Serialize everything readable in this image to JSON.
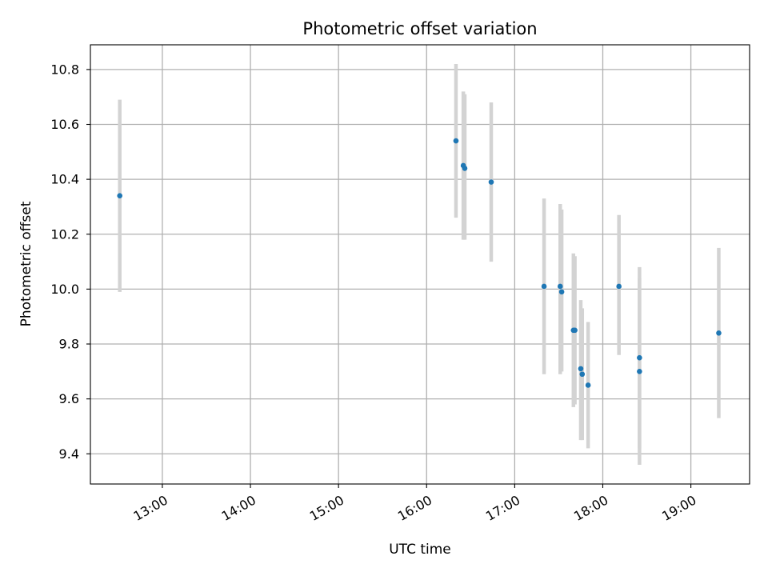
{
  "chart_data": {
    "type": "scatter",
    "title": "Photometric offset variation",
    "xlabel": "UTC time",
    "ylabel": "Photometric offset",
    "x_is_time": true,
    "xlim": [
      "12:11",
      "19:40"
    ],
    "ylim": [
      9.29,
      10.89
    ],
    "x_ticks": [
      "13:00",
      "14:00",
      "15:00",
      "16:00",
      "17:00",
      "18:00",
      "19:00"
    ],
    "y_ticks": [
      "9.4",
      "9.6",
      "9.8",
      "10.0",
      "10.2",
      "10.4",
      "10.6",
      "10.8"
    ],
    "grid": true,
    "x_tick_rotation_deg": 30,
    "series": [
      {
        "points": [
          {
            "x": "12:31",
            "y": 10.34,
            "y_low": 9.99,
            "y_high": 10.69
          },
          {
            "x": "16:20",
            "y": 10.54,
            "y_low": 10.26,
            "y_high": 10.82
          },
          {
            "x": "16:25",
            "y": 10.45,
            "y_low": 10.18,
            "y_high": 10.72
          },
          {
            "x": "16:26",
            "y": 10.44,
            "y_low": 10.18,
            "y_high": 10.71
          },
          {
            "x": "16:44",
            "y": 10.39,
            "y_low": 10.1,
            "y_high": 10.68
          },
          {
            "x": "17:20",
            "y": 10.01,
            "y_low": 9.69,
            "y_high": 10.33
          },
          {
            "x": "17:31",
            "y": 10.01,
            "y_low": 9.69,
            "y_high": 10.31
          },
          {
            "x": "17:32",
            "y": 9.99,
            "y_low": 9.7,
            "y_high": 10.29
          },
          {
            "x": "17:40",
            "y": 9.85,
            "y_low": 9.57,
            "y_high": 10.13
          },
          {
            "x": "17:41",
            "y": 9.85,
            "y_low": 9.58,
            "y_high": 10.12
          },
          {
            "x": "17:45",
            "y": 9.71,
            "y_low": 9.45,
            "y_high": 9.96
          },
          {
            "x": "17:46",
            "y": 9.69,
            "y_low": 9.45,
            "y_high": 9.93
          },
          {
            "x": "17:50",
            "y": 9.65,
            "y_low": 9.42,
            "y_high": 9.88
          },
          {
            "x": "18:11",
            "y": 10.01,
            "y_low": 9.76,
            "y_high": 10.27
          },
          {
            "x": "18:25",
            "y": 9.75,
            "y_low": 9.42,
            "y_high": 10.08
          },
          {
            "x": "18:25",
            "y": 9.7,
            "y_low": 9.36,
            "y_high": 10.04
          },
          {
            "x": "19:19",
            "y": 9.84,
            "y_low": 9.53,
            "y_high": 10.15
          }
        ]
      }
    ],
    "colors": {
      "marker": "#1f77b4",
      "errorbar": "#d3d3d3",
      "grid": "#b0b0b0",
      "frame": "#000000"
    }
  }
}
